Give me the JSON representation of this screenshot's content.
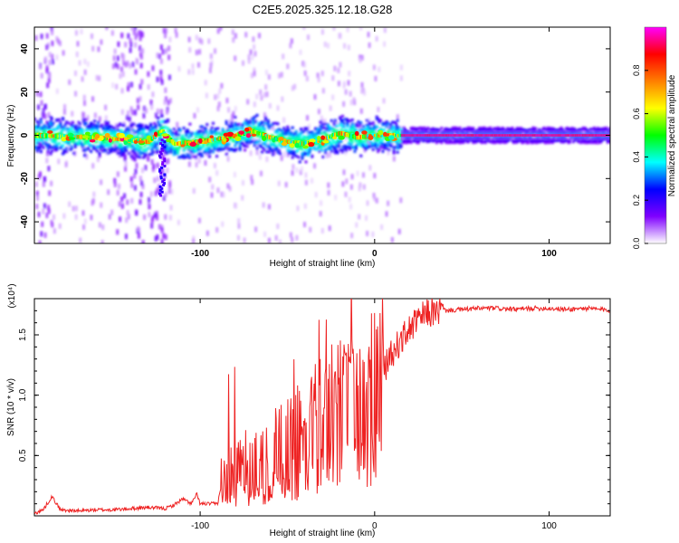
{
  "title": "C2E5.2025.325.12.18.G28",
  "chart_data": [
    {
      "type": "heatmap",
      "xlabel": "Height of straight line (km)",
      "ylabel": "Frequency (Hz)",
      "xlim": [
        -195,
        135
      ],
      "ylim": [
        -50,
        50
      ],
      "xticks": [
        -100,
        0,
        100
      ],
      "xtick_labels": [
        "-100",
        "0",
        "100"
      ],
      "yticks": [
        -40,
        -20,
        0,
        20,
        40
      ],
      "ytick_labels": [
        "-40",
        "-20",
        "0",
        "20",
        "40"
      ],
      "ridge": [
        {
          "x": -195,
          "y": 0
        },
        {
          "x": -160,
          "y": -1
        },
        {
          "x": -130,
          "y": -3
        },
        {
          "x": -122,
          "y": 2
        },
        {
          "x": -115,
          "y": -4
        },
        {
          "x": -100,
          "y": -3
        },
        {
          "x": -85,
          "y": -1
        },
        {
          "x": -70,
          "y": 2
        },
        {
          "x": -60,
          "y": -1
        },
        {
          "x": -50,
          "y": -3
        },
        {
          "x": -40,
          "y": -4
        },
        {
          "x": -30,
          "y": -2
        },
        {
          "x": -20,
          "y": 1
        },
        {
          "x": -10,
          "y": -1
        },
        {
          "x": 0,
          "y": 0
        },
        {
          "x": 15,
          "y": 0
        },
        {
          "x": 135,
          "y": 0
        }
      ],
      "colorbar": {
        "label": "Normalized spectral amplitude",
        "range": [
          0,
          1
        ],
        "ticks": [
          0.0,
          0.2,
          0.4,
          0.6,
          0.8
        ],
        "tick_labels": [
          "0.0",
          "0.2",
          "0.4",
          "0.6",
          "0.8"
        ],
        "colors": [
          "#ffffff",
          "#7f00ff",
          "#0000ff",
          "#00ffff",
          "#00ff00",
          "#ffff00",
          "#ff7f00",
          "#ff0000",
          "#ff00ff"
        ]
      },
      "grid": false
    },
    {
      "type": "line",
      "xlabel": "Height of straight line (km)",
      "ylabel": "SNR (10 * v/v)",
      "y_multiplier": "(x10⁴)",
      "xlim": [
        -195,
        135
      ],
      "ylim": [
        0,
        1.8
      ],
      "xticks": [
        -100,
        0,
        100
      ],
      "xtick_labels": [
        "-100",
        "0",
        "100"
      ],
      "yticks": [
        0.5,
        1.0,
        1.5
      ],
      "ytick_labels": [
        "0.5",
        "1.0",
        "1.5"
      ],
      "color": "#ee2222",
      "series": [
        {
          "x": [
            -195,
            -190,
            -185,
            -180,
            -170,
            -160,
            -150,
            -140,
            -130,
            -120,
            -115,
            -110,
            -105,
            -102,
            -100,
            -95,
            -90,
            -88,
            -85,
            -80,
            -75,
            -70,
            -65,
            -60,
            -55,
            -50,
            -45,
            -40,
            -35,
            -30,
            -25,
            -20,
            -15,
            -10,
            -5,
            0,
            5,
            10,
            15,
            20,
            25,
            30,
            40,
            50,
            60,
            70,
            80,
            90,
            100,
            110,
            120,
            130,
            135
          ],
          "y": [
            0.02,
            0.05,
            0.16,
            0.05,
            0.04,
            0.05,
            0.05,
            0.06,
            0.07,
            0.06,
            0.09,
            0.14,
            0.1,
            0.18,
            0.1,
            0.1,
            0.1,
            0.25,
            0.3,
            0.35,
            0.4,
            0.35,
            0.45,
            0.4,
            0.55,
            0.6,
            0.6,
            0.7,
            0.75,
            0.8,
            0.85,
            0.9,
            0.95,
            0.9,
            1.0,
            1.1,
            1.2,
            1.35,
            1.45,
            1.55,
            1.62,
            1.68,
            1.7,
            1.71,
            1.72,
            1.72,
            1.71,
            1.72,
            1.72,
            1.71,
            1.72,
            1.71,
            1.7
          ]
        }
      ],
      "grid": false
    }
  ]
}
